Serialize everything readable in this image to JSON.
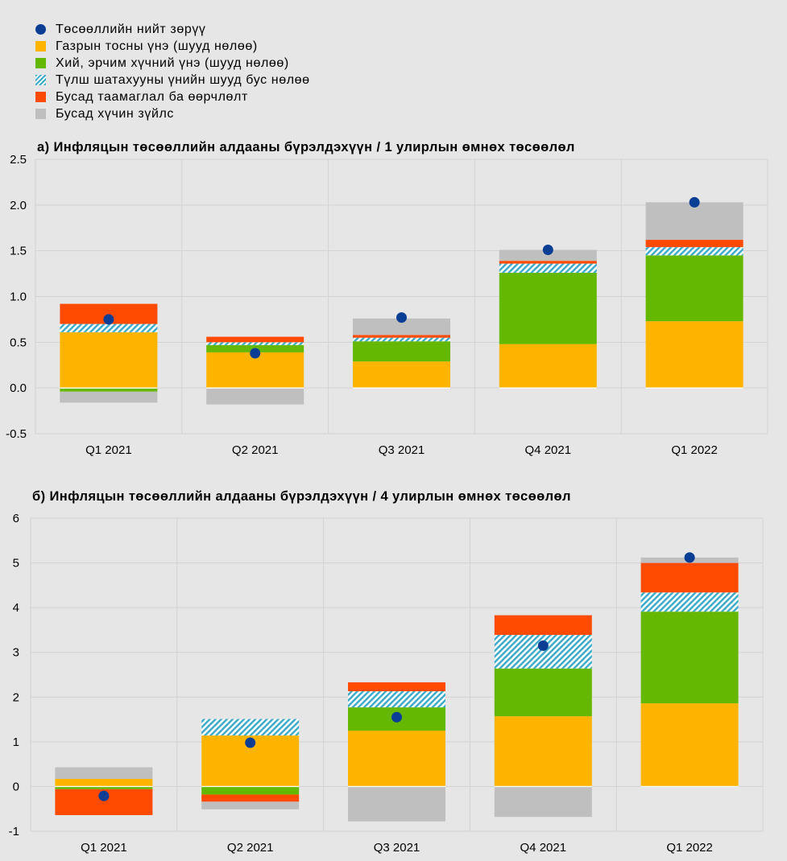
{
  "legend": [
    {
      "label": "Төсөөллийн нийт зөрүү",
      "kind": "dot",
      "color": "#0a3d94"
    },
    {
      "label": "Газрын тосны үнэ (шууд нөлөө)",
      "kind": "solid",
      "color": "#ffb400"
    },
    {
      "label": "Хий, эрчим хүчний үнэ (шууд нөлөө)",
      "kind": "solid",
      "color": "#65b800"
    },
    {
      "label": "Түлш шатахууны үнийн шууд бус нөлөө",
      "kind": "hatch",
      "color": "#39a9c8"
    },
    {
      "label": "Бусад таамаглал ба өөрчлөлт",
      "kind": "solid",
      "color": "#ff4b00"
    },
    {
      "label": "Бусад хүчин зүйлс",
      "kind": "solid",
      "color": "#bfbfbf"
    }
  ],
  "chart_data": [
    {
      "type": "bar",
      "stacked": true,
      "title": "а) Инфляцын төсөөллийн алдааны бүрэлдэхүүн / 1 улирлын өмнөх төсөөлөл",
      "categories": [
        "Q1 2021",
        "Q2 2021",
        "Q3 2021",
        "Q4 2021",
        "Q1 2022"
      ],
      "ylim": [
        -0.5,
        2.5
      ],
      "yticks": [
        "2.5",
        "2.0",
        "1.5",
        "1.0",
        "0.5",
        "0.0",
        "-0.5"
      ],
      "ytick_values": [
        2.5,
        2.0,
        1.5,
        1.0,
        0.5,
        0.0,
        -0.5
      ],
      "series": [
        {
          "name": "Газрын тосны үнэ (шууд нөлөө)",
          "values": [
            0.61,
            0.39,
            0.29,
            0.48,
            0.73
          ]
        },
        {
          "name": "Хий, эрчим хүчний үнэ (шууд нөлөө)",
          "values": [
            -0.04,
            0.08,
            0.22,
            0.78,
            0.72
          ]
        },
        {
          "name": "Түлш шатахууны үнийн шууд бус нөлөө",
          "values": [
            0.09,
            0.03,
            0.04,
            0.1,
            0.09
          ]
        },
        {
          "name": "Бусад таамаглал ба өөрчлөлт",
          "values": [
            0.22,
            0.06,
            0.03,
            0.03,
            0.08
          ]
        },
        {
          "name": "Бусад хүчин зүйлс",
          "values": [
            -0.12,
            -0.18,
            0.18,
            0.12,
            0.41
          ]
        }
      ],
      "total": [
        0.75,
        0.38,
        0.77,
        1.51,
        2.03
      ]
    },
    {
      "type": "bar",
      "stacked": true,
      "title": "б) Инфляцын төсөөллийн алдааны бүрэлдэхүүн / 4 улирлын өмнөх төсөөлөл",
      "categories": [
        "Q1 2021",
        "Q2 2021",
        "Q3 2021",
        "Q4 2021",
        "Q1 2022"
      ],
      "ylim": [
        -1,
        6
      ],
      "yticks": [
        "6",
        "5",
        "4",
        "3",
        "2",
        "1",
        "0",
        "-1"
      ],
      "ytick_values": [
        6,
        5,
        4,
        3,
        2,
        1,
        0,
        -1
      ],
      "series": [
        {
          "name": "Газрын тосны үнэ (шууд нөлөө)",
          "values": [
            0.17,
            1.14,
            1.25,
            1.57,
            1.86
          ]
        },
        {
          "name": "Хий, эрчим хүчний үнэ (шууд нөлөө)",
          "values": [
            -0.06,
            -0.18,
            0.52,
            1.07,
            2.05
          ]
        },
        {
          "name": "Түлш шатахууны үнийн шууд бус нөлөө",
          "values": [
            0.0,
            0.37,
            0.36,
            0.75,
            0.43
          ]
        },
        {
          "name": "Бусад таамаглал ба өөрчлөлт",
          "values": [
            -0.58,
            -0.16,
            0.2,
            0.44,
            0.66
          ]
        },
        {
          "name": "Бусад хүчин зүйлс",
          "values": [
            0.26,
            -0.17,
            -0.78,
            -0.68,
            0.12
          ]
        }
      ],
      "total": [
        -0.21,
        0.98,
        1.55,
        3.15,
        5.12
      ]
    }
  ]
}
